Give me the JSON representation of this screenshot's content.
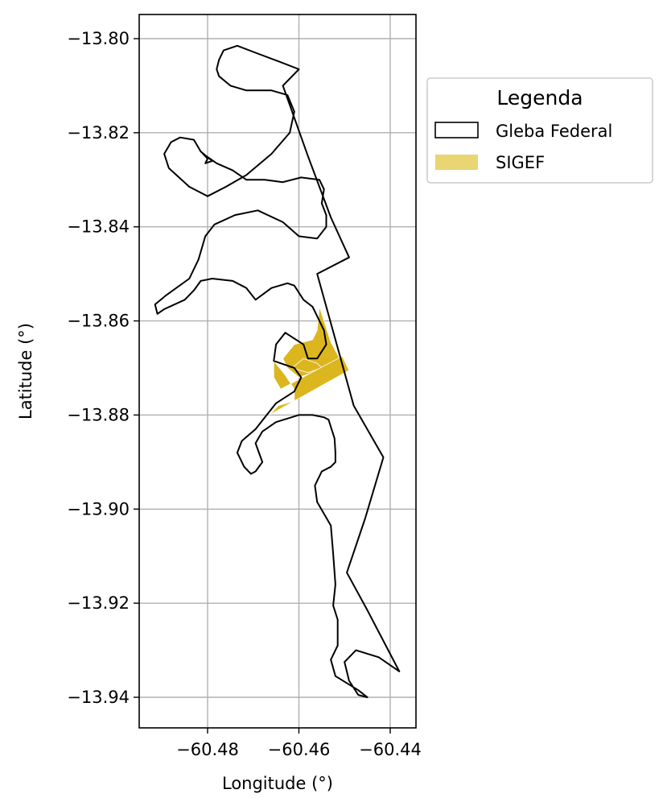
{
  "chart_data": {
    "type": "map",
    "xlabel": "Longitude (°)",
    "ylabel": "Latitude (°)",
    "xlim": [
      -60.495,
      -60.434
    ],
    "ylim": [
      -13.9465,
      -13.7945
    ],
    "xticks": [
      -60.48,
      -60.46,
      -60.44
    ],
    "xtick_labels": [
      "−60.48",
      "−60.46",
      "−60.44"
    ],
    "yticks": [
      -13.8,
      -13.82,
      -13.84,
      -13.86,
      -13.88,
      -13.9,
      -13.92,
      -13.94
    ],
    "ytick_labels": [
      "−13.80",
      "−13.82",
      "−13.84",
      "−13.86",
      "−13.88",
      "−13.90",
      "−13.92",
      "−13.94"
    ],
    "grid": true,
    "legend": {
      "title": "Legenda",
      "placement": "outside-right-top",
      "entries": [
        "Gleba Federal",
        "SIGEF"
      ]
    },
    "colors": {
      "gleba_edge": "#000000",
      "sigef_fill": "#dbb61f",
      "sigef_legend": "#e9d572",
      "grid": "#b0b0b0"
    },
    "gleba_federal": [
      [
        -60.4775,
        -13.8045
      ],
      [
        -60.4765,
        -13.8025
      ],
      [
        -60.4735,
        -13.8015
      ],
      [
        -60.4695,
        -13.803
      ],
      [
        -60.464,
        -13.805
      ],
      [
        -60.46,
        -13.8065
      ],
      [
        -60.4635,
        -13.81
      ],
      [
        -60.458,
        -13.825
      ],
      [
        -60.453,
        -13.838
      ],
      [
        -60.449,
        -13.8465
      ],
      [
        -60.456,
        -13.85
      ],
      [
        -60.452,
        -13.864
      ],
      [
        -60.448,
        -13.878
      ],
      [
        -60.4415,
        -13.889
      ],
      [
        -60.4455,
        -13.902
      ],
      [
        -60.4495,
        -13.9135
      ],
      [
        -60.445,
        -13.9215
      ],
      [
        -60.438,
        -13.9345
      ],
      [
        -60.4425,
        -13.9315
      ],
      [
        -60.4475,
        -13.93
      ],
      [
        -60.45,
        -13.9325
      ],
      [
        -60.449,
        -13.9365
      ],
      [
        -60.447,
        -13.9395
      ],
      [
        -60.445,
        -13.94
      ],
      [
        -60.447,
        -13.9385
      ],
      [
        -60.452,
        -13.9355
      ],
      [
        -60.453,
        -13.932
      ],
      [
        -60.4515,
        -13.929
      ],
      [
        -60.4515,
        -13.9235
      ],
      [
        -60.4525,
        -13.9205
      ],
      [
        -60.452,
        -13.916
      ],
      [
        -60.4525,
        -13.9095
      ],
      [
        -60.453,
        -13.9035
      ],
      [
        -60.4545,
        -13.901
      ],
      [
        -60.456,
        -13.8985
      ],
      [
        -60.4565,
        -13.895
      ],
      [
        -60.455,
        -13.892
      ],
      [
        -60.453,
        -13.891
      ],
      [
        -60.452,
        -13.89
      ],
      [
        -60.452,
        -13.888
      ],
      [
        -60.4522,
        -13.885
      ],
      [
        -60.4535,
        -13.881
      ],
      [
        -60.4545,
        -13.8805
      ],
      [
        -60.457,
        -13.88
      ],
      [
        -60.46,
        -13.88
      ],
      [
        -60.465,
        -13.8815
      ],
      [
        -60.468,
        -13.8835
      ],
      [
        -60.4695,
        -13.886
      ],
      [
        -60.468,
        -13.89
      ],
      [
        -60.4695,
        -13.892
      ],
      [
        -60.4705,
        -13.8925
      ],
      [
        -60.472,
        -13.891
      ],
      [
        -60.4735,
        -13.888
      ],
      [
        -60.4725,
        -13.8855
      ],
      [
        -60.4695,
        -13.883
      ],
      [
        -60.465,
        -13.8775
      ],
      [
        -60.461,
        -13.875
      ],
      [
        -60.4595,
        -13.872
      ],
      [
        -60.461,
        -13.87
      ],
      [
        -60.464,
        -13.869
      ],
      [
        -60.4655,
        -13.8685
      ],
      [
        -60.465,
        -13.865
      ],
      [
        -60.463,
        -13.8625
      ],
      [
        -60.459,
        -13.865
      ],
      [
        -60.458,
        -13.868
      ],
      [
        -60.456,
        -13.868
      ],
      [
        -60.454,
        -13.865
      ],
      [
        -60.4545,
        -13.862
      ],
      [
        -60.4565,
        -13.858
      ],
      [
        -60.457,
        -13.857
      ],
      [
        -60.459,
        -13.8555
      ],
      [
        -60.461,
        -13.8525
      ],
      [
        -60.4625,
        -13.852
      ],
      [
        -60.466,
        -13.853
      ],
      [
        -60.4695,
        -13.8555
      ],
      [
        -60.4715,
        -13.853
      ],
      [
        -60.4745,
        -13.8515
      ],
      [
        -60.479,
        -13.851
      ],
      [
        -60.4815,
        -13.8515
      ],
      [
        -60.483,
        -13.8535
      ],
      [
        -60.485,
        -13.8555
      ],
      [
        -60.4895,
        -13.8575
      ],
      [
        -60.491,
        -13.8585
      ],
      [
        -60.4915,
        -13.8565
      ],
      [
        -60.489,
        -13.8545
      ],
      [
        -60.484,
        -13.851
      ],
      [
        -60.482,
        -13.847
      ],
      [
        -60.4805,
        -13.842
      ],
      [
        -60.4785,
        -13.8395
      ],
      [
        -60.474,
        -13.8375
      ],
      [
        -60.469,
        -13.8365
      ],
      [
        -60.4635,
        -13.839
      ],
      [
        -60.46,
        -13.842
      ],
      [
        -60.456,
        -13.8425
      ],
      [
        -60.454,
        -13.84
      ],
      [
        -60.454,
        -13.8375
      ],
      [
        -60.455,
        -13.835
      ],
      [
        -60.4545,
        -13.832
      ],
      [
        -60.4555,
        -13.83
      ],
      [
        -60.4595,
        -13.8295
      ],
      [
        -60.4635,
        -13.8305
      ],
      [
        -60.4675,
        -13.83
      ],
      [
        -60.4715,
        -13.83
      ],
      [
        -60.4745,
        -13.828
      ],
      [
        -60.478,
        -13.8265
      ],
      [
        -60.481,
        -13.8245
      ],
      [
        -60.48,
        -13.8255
      ],
      [
        -60.4805,
        -13.8265
      ],
      [
        -60.479,
        -13.826
      ],
      [
        -60.4815,
        -13.824
      ],
      [
        -60.483,
        -13.8215
      ],
      [
        -60.486,
        -13.821
      ],
      [
        -60.488,
        -13.822
      ],
      [
        -60.4895,
        -13.8245
      ],
      [
        -60.4885,
        -13.8275
      ],
      [
        -60.484,
        -13.8315
      ],
      [
        -60.48,
        -13.8335
      ],
      [
        -60.476,
        -13.8315
      ],
      [
        -60.4715,
        -13.829
      ],
      [
        -60.466,
        -13.8245
      ],
      [
        -60.462,
        -13.82
      ],
      [
        -60.461,
        -13.8155
      ],
      [
        -60.4625,
        -13.812
      ],
      [
        -60.466,
        -13.811
      ],
      [
        -60.4715,
        -13.811
      ],
      [
        -60.475,
        -13.81
      ],
      [
        -60.4775,
        -13.808
      ],
      [
        -60.478,
        -13.8065
      ],
      [
        -60.4775,
        -13.8045
      ]
    ],
    "sigef": [
      [
        [
          -60.4555,
          -13.857
        ],
        [
          -60.453,
          -13.8645
        ],
        [
          -60.4505,
          -13.869
        ],
        [
          -60.454,
          -13.87
        ],
        [
          -60.46,
          -13.872
        ],
        [
          -60.4625,
          -13.87
        ],
        [
          -60.4635,
          -13.868
        ],
        [
          -60.461,
          -13.865
        ],
        [
          -60.457,
          -13.864
        ],
        [
          -60.456,
          -13.862
        ]
      ],
      [
        [
          -60.459,
          -13.868
        ],
        [
          -60.4615,
          -13.87
        ],
        [
          -60.458,
          -13.871
        ],
        [
          -60.455,
          -13.87
        ],
        [
          -60.456,
          -13.869
        ]
      ],
      [
        [
          -60.4505,
          -13.8675
        ],
        [
          -60.449,
          -13.8705
        ],
        [
          -60.4665,
          -13.88
        ],
        [
          -60.4645,
          -13.878
        ],
        [
          -60.461,
          -13.877
        ],
        [
          -60.461,
          -13.8745
        ],
        [
          -60.463,
          -13.8715
        ],
        [
          -60.4655,
          -13.8685
        ],
        [
          -60.4655,
          -13.872
        ],
        [
          -60.464,
          -13.8745
        ]
      ]
    ]
  }
}
